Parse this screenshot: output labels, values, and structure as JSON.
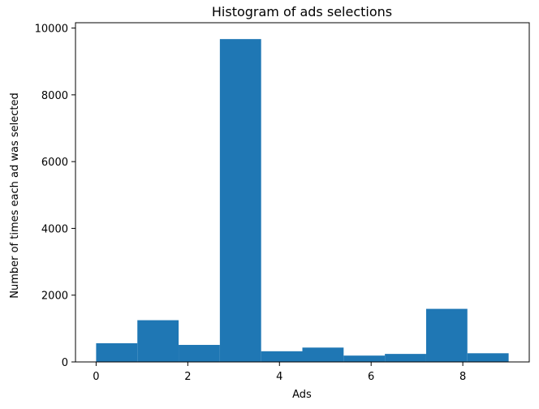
{
  "chart_data": {
    "type": "bar",
    "title": "Histogram of ads selections",
    "xlabel": "Ads",
    "ylabel": "Number of times each ad was selected",
    "bins": [
      {
        "from": 0.0,
        "to": 0.9,
        "value": 560
      },
      {
        "from": 0.9,
        "to": 1.8,
        "value": 1250
      },
      {
        "from": 1.8,
        "to": 2.7,
        "value": 510
      },
      {
        "from": 2.7,
        "to": 3.6,
        "value": 9670
      },
      {
        "from": 3.6,
        "to": 4.5,
        "value": 320
      },
      {
        "from": 4.5,
        "to": 5.4,
        "value": 430
      },
      {
        "from": 5.4,
        "to": 6.3,
        "value": 190
      },
      {
        "from": 6.3,
        "to": 7.2,
        "value": 240
      },
      {
        "from": 7.2,
        "to": 8.1,
        "value": 1590
      },
      {
        "from": 8.1,
        "to": 9.0,
        "value": 260
      }
    ],
    "xlim": [
      -0.45,
      9.45
    ],
    "ylim": [
      0,
      10160
    ],
    "xticks": [
      0,
      2,
      4,
      6,
      8
    ],
    "yticks": [
      0,
      2000,
      4000,
      6000,
      8000,
      10000
    ],
    "bar_color": "#1f77b4",
    "grid": false,
    "legend": false
  }
}
